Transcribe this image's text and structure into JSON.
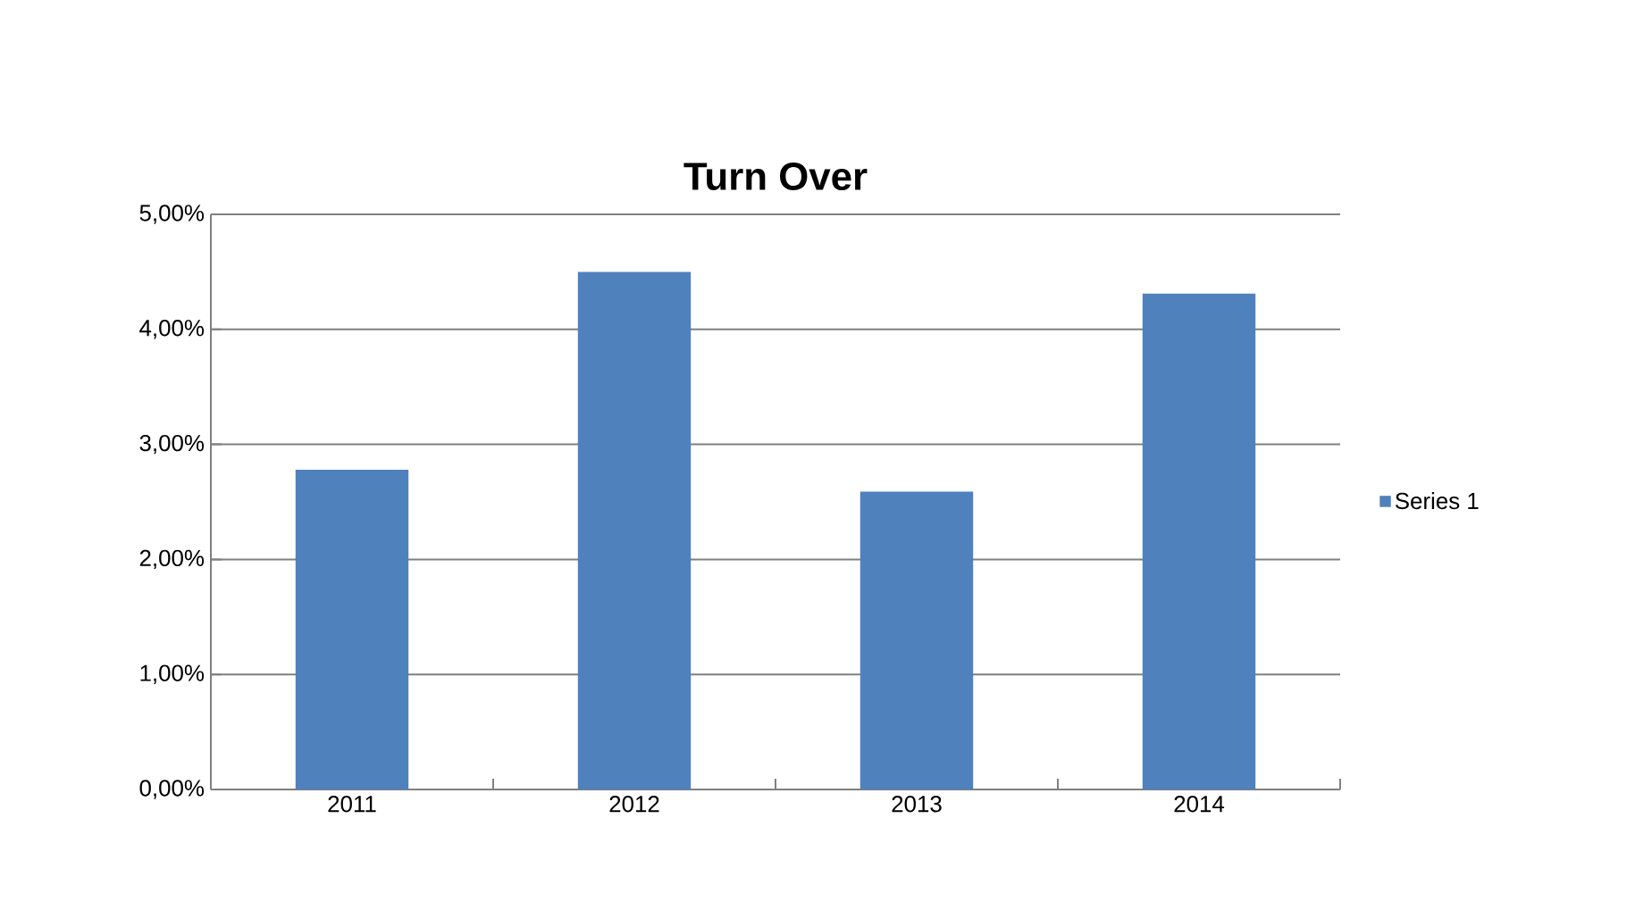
{
  "chart_data": {
    "type": "bar",
    "title": "Turn Over",
    "categories": [
      "2011",
      "2012",
      "2013",
      "2014"
    ],
    "series": [
      {
        "name": "Series 1",
        "color": "#4f81bd",
        "values": [
          2.78,
          4.5,
          2.59,
          4.31
        ]
      }
    ],
    "ylim": [
      0,
      5
    ],
    "yticks": [
      {
        "value": 0,
        "label": "0,00%"
      },
      {
        "value": 1,
        "label": "1,00%"
      },
      {
        "value": 2,
        "label": "2,00%"
      },
      {
        "value": 3,
        "label": "3,00%"
      },
      {
        "value": 4,
        "label": "4,00%"
      },
      {
        "value": 5,
        "label": "5,00%"
      }
    ],
    "grid": "y",
    "legend": "right"
  }
}
